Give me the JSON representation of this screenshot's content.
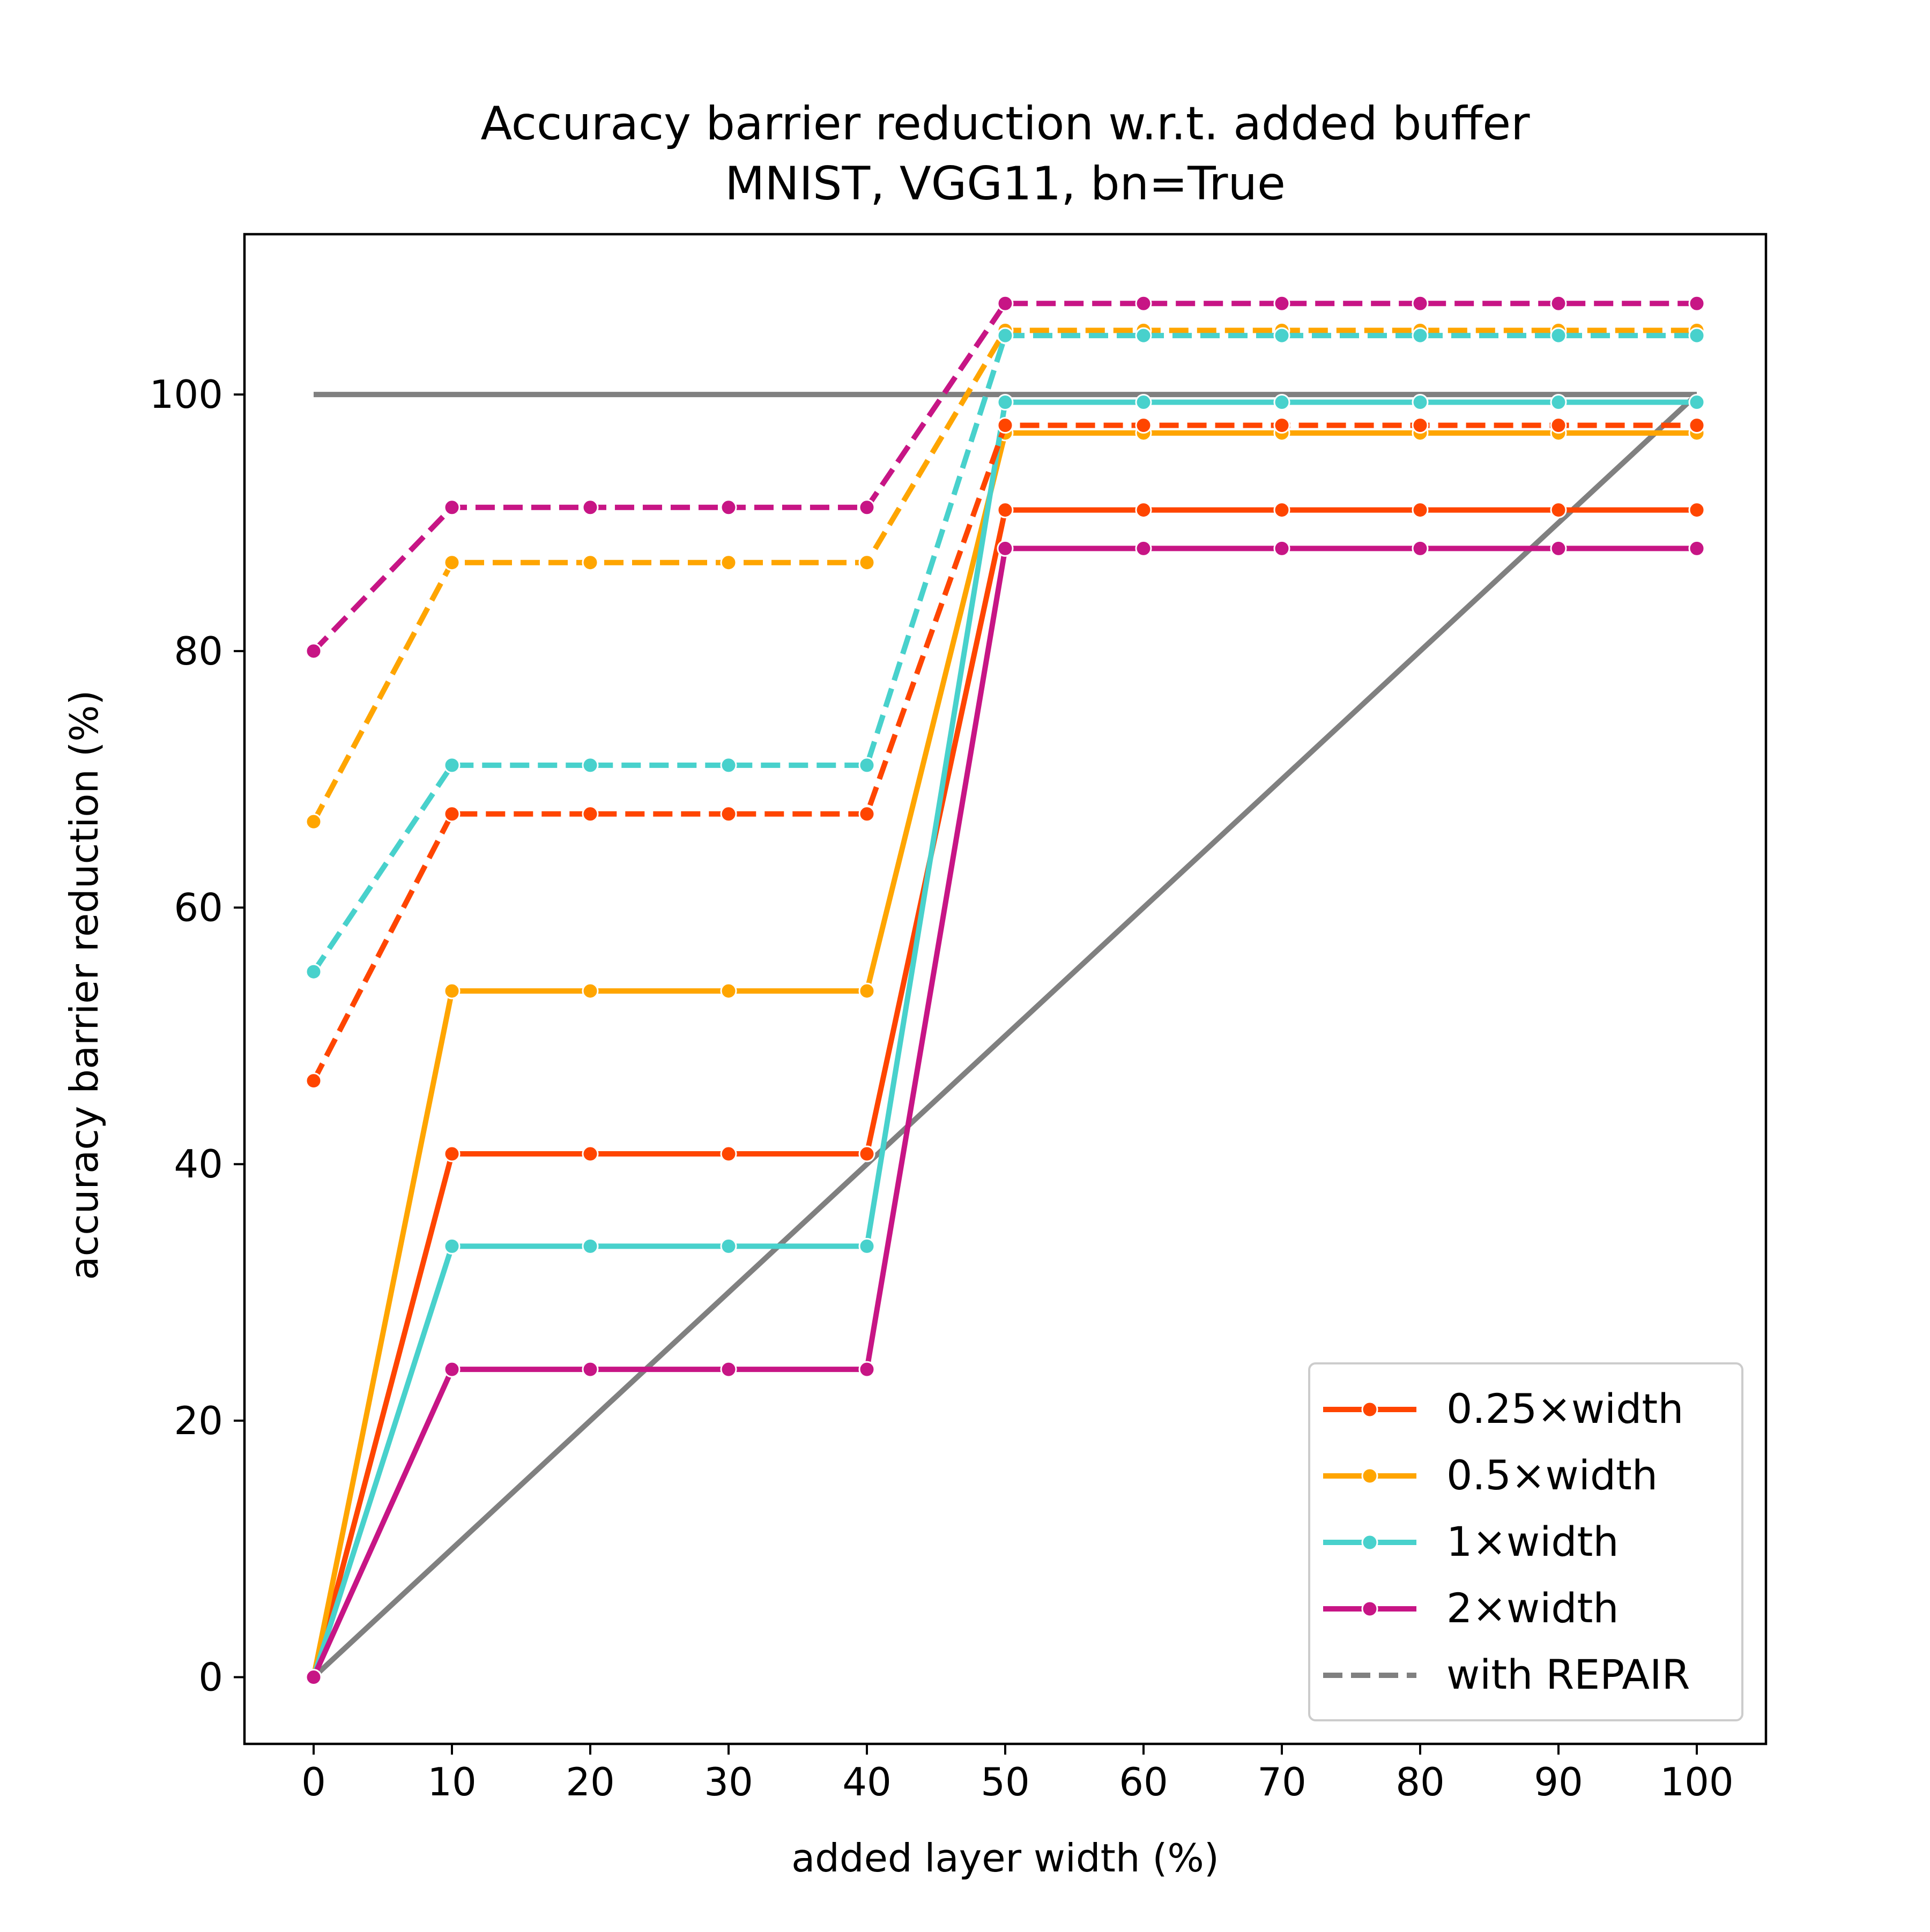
{
  "chart_data": {
    "type": "line",
    "title": "Accuracy barrier reduction w.r.t. added buffer",
    "subtitle": "MNIST, VGG11, bn=True",
    "xlabel": "added layer width (%)",
    "ylabel": "accuracy barrier reduction (%)",
    "x": [
      0,
      10,
      20,
      30,
      40,
      50,
      60,
      70,
      80,
      90,
      100
    ],
    "xlim": [
      -5,
      105
    ],
    "ylim": [
      -5.2,
      112.5
    ],
    "xticks": [
      "0",
      "10",
      "20",
      "30",
      "40",
      "50",
      "60",
      "70",
      "80",
      "90",
      "100"
    ],
    "yticks": [
      "0",
      "20",
      "40",
      "60",
      "80",
      "100"
    ],
    "grid": false,
    "legend_position": "bottom-right",
    "series": [
      {
        "name": "0.25×width",
        "color": "#FF4500",
        "style": "solid",
        "values": [
          0,
          40.8,
          40.8,
          40.8,
          40.8,
          91.0,
          91.0,
          91.0,
          91.0,
          91.0,
          91.0
        ]
      },
      {
        "name": "0.5×width",
        "color": "#FFA500",
        "style": "solid",
        "values": [
          0,
          53.5,
          53.5,
          53.5,
          53.5,
          97.0,
          97.0,
          97.0,
          97.0,
          97.0,
          97.0
        ]
      },
      {
        "name": "1×width",
        "color": "#48D1CC",
        "style": "solid",
        "values": [
          0,
          33.6,
          33.6,
          33.6,
          33.6,
          99.4,
          99.4,
          99.4,
          99.4,
          99.4,
          99.4
        ]
      },
      {
        "name": "2×width",
        "color": "#C71585",
        "style": "solid",
        "values": [
          0,
          24.0,
          24.0,
          24.0,
          24.0,
          88.0,
          88.0,
          88.0,
          88.0,
          88.0,
          88.0
        ]
      },
      {
        "name": "0.25×width",
        "color": "#FF4500",
        "style": "dashed",
        "repair": true,
        "values": [
          46.5,
          67.3,
          67.3,
          67.3,
          67.3,
          97.6,
          97.6,
          97.6,
          97.6,
          97.6,
          97.6
        ]
      },
      {
        "name": "0.5×width",
        "color": "#FFA500",
        "style": "dashed",
        "repair": true,
        "values": [
          66.7,
          86.9,
          86.9,
          86.9,
          86.9,
          105.0,
          105.0,
          105.0,
          105.0,
          105.0,
          105.0
        ]
      },
      {
        "name": "1×width",
        "color": "#48D1CC",
        "style": "dashed",
        "repair": true,
        "values": [
          55.0,
          71.1,
          71.1,
          71.1,
          71.1,
          104.6,
          104.6,
          104.6,
          104.6,
          104.6,
          104.6
        ]
      },
      {
        "name": "2×width",
        "color": "#C71585",
        "style": "dashed",
        "repair": true,
        "values": [
          80.0,
          91.2,
          91.2,
          91.2,
          91.2,
          107.1,
          107.1,
          107.1,
          107.1,
          107.1,
          107.1
        ]
      }
    ],
    "reference_lines": [
      {
        "color": "#808080",
        "x": [
          0,
          100
        ],
        "y": [
          100,
          100
        ]
      },
      {
        "color": "#808080",
        "x": [
          0,
          100
        ],
        "y": [
          0,
          100
        ]
      }
    ],
    "legend": [
      {
        "label": "0.25×width",
        "color": "#FF4500",
        "style": "solid"
      },
      {
        "label": "0.5×width",
        "color": "#FFA500",
        "style": "solid"
      },
      {
        "label": "1×width",
        "color": "#48D1CC",
        "style": "solid"
      },
      {
        "label": "2×width",
        "color": "#C71585",
        "style": "solid"
      },
      {
        "label": "with REPAIR",
        "color": "#808080",
        "style": "dashed"
      }
    ]
  }
}
